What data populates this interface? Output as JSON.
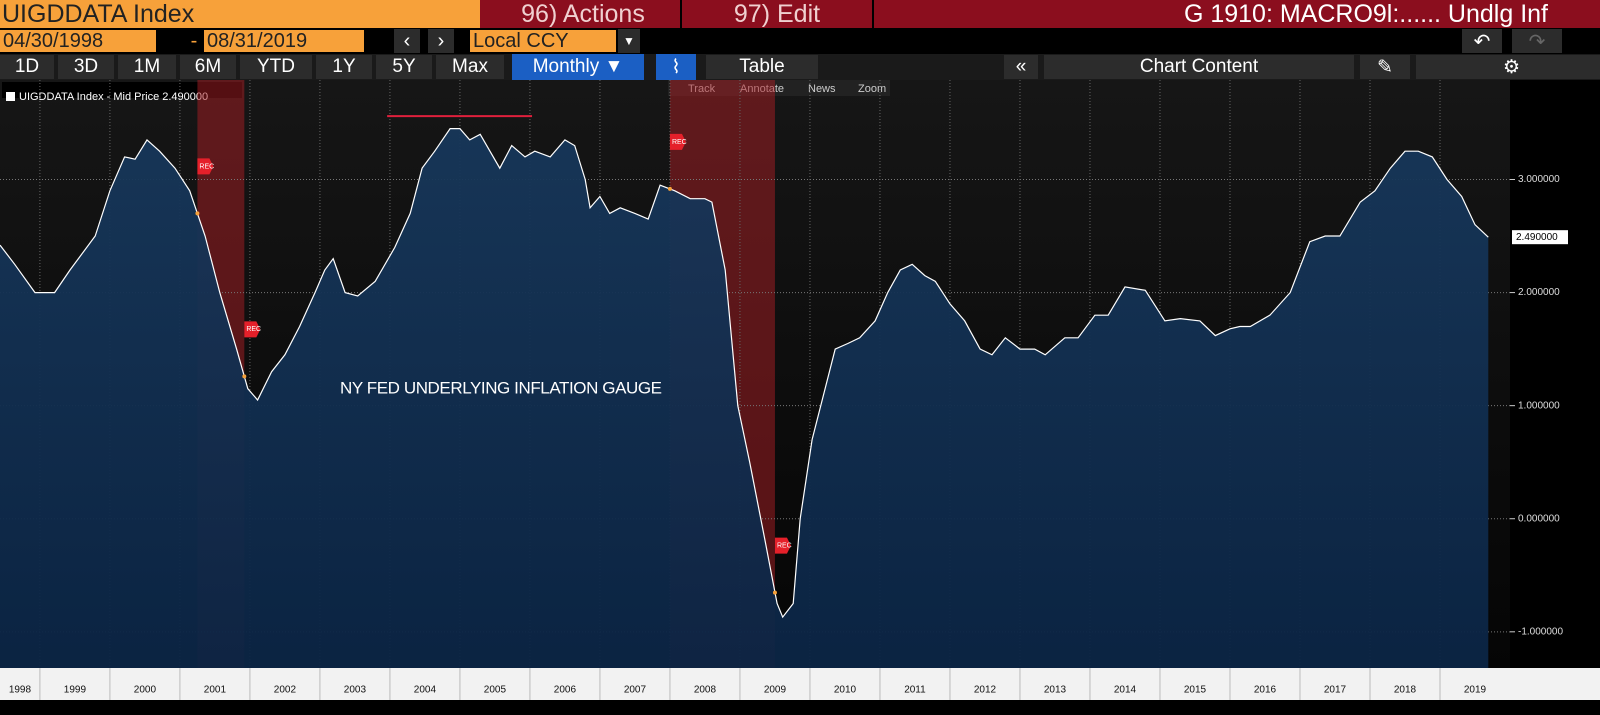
{
  "header": {
    "ticker": "UIGDDATA Index",
    "actions": "96) Actions",
    "edit": "97) Edit",
    "title": "G 1910: MACRO9l:...... Undlg Inf"
  },
  "toolbar": {
    "start_date": "04/30/1998",
    "separator": "-",
    "end_date": "08/31/2019",
    "currency": "Local CCY"
  },
  "periods": [
    "1D",
    "3D",
    "1M",
    "6M",
    "YTD",
    "1Y",
    "5Y",
    "Max"
  ],
  "frequency": "Monthly ▼",
  "table": "Table",
  "chart_content": "Chart Content",
  "chart_tools": [
    "Track",
    "Annotate",
    "News",
    "Zoom"
  ],
  "chart_data": {
    "type": "area",
    "legend": "UIGDDATA Index - Mid Price 2.490000",
    "annotation": "NY FED UNDERLYING INFLATION GAUGE",
    "color": "#ffffff",
    "fill": "#143a66",
    "x": [
      1998.43,
      1998.64,
      1998.93,
      1999.21,
      1999.43,
      1999.79,
      2000.0,
      2000.21,
      2000.36,
      2000.53,
      2000.71,
      2000.93,
      2001.14,
      2001.36,
      2001.57,
      2001.81,
      2001.97,
      2002.11,
      2002.31,
      2002.5,
      2002.71,
      2002.93,
      2003.07,
      2003.19,
      2003.36,
      2003.54,
      2003.79,
      2004.07,
      2004.29,
      2004.46,
      2004.64,
      2004.86,
      2005.0,
      2005.14,
      2005.29,
      2005.57,
      2005.74,
      2005.93,
      2006.07,
      2006.29,
      2006.5,
      2006.64,
      2006.79,
      2006.86,
      2007.0,
      2007.14,
      2007.29,
      2007.5,
      2007.69,
      2007.86,
      2008.07,
      2008.29,
      2008.5,
      2008.6,
      2008.79,
      2008.97,
      2009.14,
      2009.36,
      2009.53,
      2009.61,
      2009.76,
      2009.86,
      2010.03,
      2010.36,
      2010.54,
      2010.71,
      2010.93,
      2011.11,
      2011.29,
      2011.46,
      2011.64,
      2011.79,
      2012.0,
      2012.21,
      2012.43,
      2012.6,
      2012.79,
      2013.0,
      2013.21,
      2013.36,
      2013.64,
      2013.83,
      2014.07,
      2014.26,
      2014.5,
      2014.79,
      2015.07,
      2015.29,
      2015.57,
      2015.79,
      2016.0,
      2016.14,
      2016.29,
      2016.57,
      2016.86,
      2017.14,
      2017.36,
      2017.57,
      2017.86,
      2018.07,
      2018.29,
      2018.5,
      2018.69,
      2018.89,
      2019.1,
      2019.31,
      2019.5,
      2019.69
    ],
    "values": [
      2.42,
      2.25,
      2.0,
      2.0,
      2.2,
      2.5,
      2.9,
      3.2,
      3.18,
      3.35,
      3.25,
      3.1,
      2.9,
      2.5,
      2.0,
      1.5,
      1.15,
      1.05,
      1.3,
      1.45,
      1.7,
      2.0,
      2.2,
      2.3,
      2.0,
      1.97,
      2.1,
      2.4,
      2.7,
      3.1,
      3.25,
      3.45,
      3.45,
      3.35,
      3.4,
      3.1,
      3.3,
      3.2,
      3.25,
      3.2,
      3.35,
      3.3,
      3.0,
      2.75,
      2.85,
      2.7,
      2.75,
      2.7,
      2.65,
      2.95,
      2.9,
      2.83,
      2.83,
      2.8,
      2.2,
      1.0,
      0.5,
      -0.2,
      -0.75,
      -0.87,
      -0.75,
      0.0,
      0.7,
      1.5,
      1.55,
      1.6,
      1.75,
      2.0,
      2.2,
      2.25,
      2.15,
      2.1,
      1.9,
      1.75,
      1.5,
      1.45,
      1.6,
      1.5,
      1.5,
      1.45,
      1.6,
      1.6,
      1.8,
      1.8,
      2.05,
      2.02,
      1.75,
      1.77,
      1.75,
      1.62,
      1.68,
      1.7,
      1.7,
      1.8,
      2.0,
      2.45,
      2.5,
      2.5,
      2.8,
      2.9,
      3.1,
      3.25,
      3.25,
      3.2,
      3.0,
      2.85,
      2.6,
      2.49
    ],
    "last_value_label": "2.490000",
    "xlim": [
      1998.43,
      2020.0
    ],
    "xticks": [
      1998,
      1999,
      2000,
      2001,
      2002,
      2003,
      2004,
      2005,
      2006,
      2007,
      2008,
      2009,
      2010,
      2011,
      2012,
      2013,
      2014,
      2015,
      2016,
      2017,
      2018,
      2019
    ],
    "ylim": [
      -1.32,
      3.88
    ],
    "yticks": [
      {
        "value": -1,
        "label": "-1.000000"
      },
      {
        "value": 0,
        "label": "0.000000"
      },
      {
        "value": 1,
        "label": "1.000000"
      },
      {
        "value": 2,
        "label": "2.000000"
      },
      {
        "value": 3,
        "label": "3.000000"
      }
    ],
    "grid": true,
    "recessions": [
      [
        2001.25,
        2001.92
      ],
      [
        2008.0,
        2009.5
      ]
    ],
    "recession_label": "REC",
    "reference_line": {
      "x": [
        2003.96,
        2006.03
      ],
      "y": 3.56,
      "color": "#e0203c"
    }
  }
}
